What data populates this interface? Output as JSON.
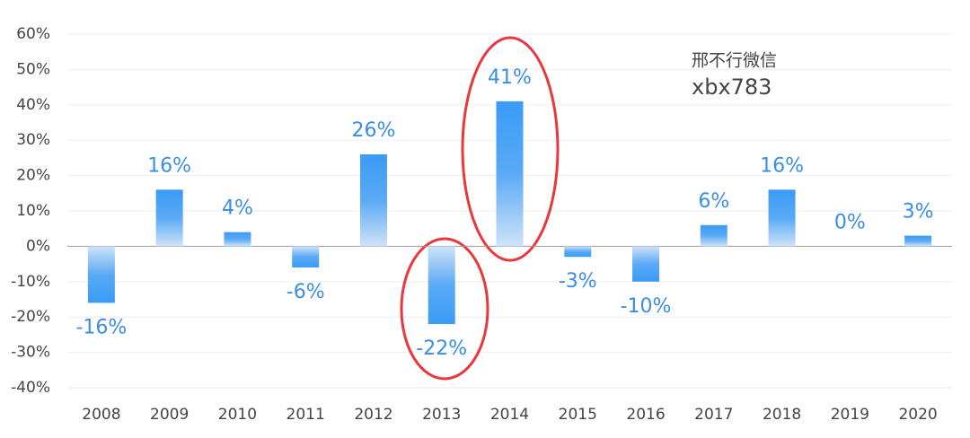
{
  "chart_data": {
    "type": "bar",
    "categories": [
      "2008",
      "2009",
      "2010",
      "2011",
      "2012",
      "2013",
      "2014",
      "2015",
      "2016",
      "2017",
      "2018",
      "2019",
      "2020"
    ],
    "values": [
      -16,
      16,
      4,
      -6,
      26,
      -22,
      41,
      -3,
      -10,
      6,
      16,
      0,
      3
    ],
    "value_labels": [
      "-16%",
      "16%",
      "4%",
      "-6%",
      "26%",
      "-22%",
      "41%",
      "-3%",
      "-10%",
      "6%",
      "16%",
      "0%",
      "3%"
    ],
    "color": "#3a9bf7",
    "ylim": [
      -40,
      60
    ],
    "yticks": [
      {
        "value": -40,
        "label": "-40%"
      },
      {
        "value": -30,
        "label": "-30%"
      },
      {
        "value": -20,
        "label": "-20%"
      },
      {
        "value": -10,
        "label": "-10%"
      },
      {
        "value": 0,
        "label": "0%"
      },
      {
        "value": 10,
        "label": "10%"
      },
      {
        "value": 20,
        "label": "20%"
      },
      {
        "value": 30,
        "label": "30%"
      },
      {
        "value": 40,
        "label": "40%"
      },
      {
        "value": 50,
        "label": "50%"
      },
      {
        "value": 60,
        "label": "60%"
      }
    ],
    "grid": true,
    "annotations": [
      "邢不行微信",
      "xbx783"
    ]
  }
}
